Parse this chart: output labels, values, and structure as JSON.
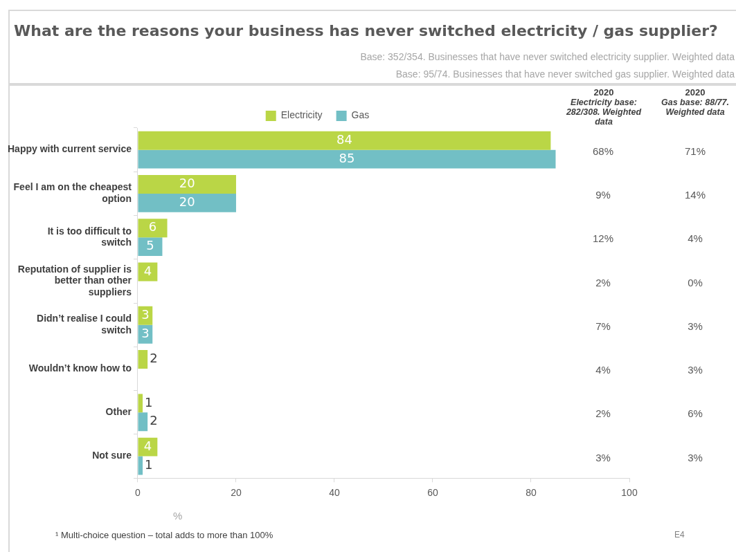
{
  "chart_data": {
    "type": "bar",
    "orientation": "horizontal",
    "title": "What are the reasons your business has never switched electricity / gas supplier?",
    "subtitle": "Base: 352/354. Businesses that have never switched electricity supplier. Weighted data",
    "xlabel": "%",
    "categories": [
      "Happy with current service",
      "Feel I am on the cheapest option",
      "It is too difficult to switch",
      "Reputation of supplier is better than other suppliers",
      "Didn’t realise I could switch",
      "Wouldn’t know how to",
      "Other",
      "Not sure"
    ],
    "series": [
      {
        "name": "Electricity",
        "color": "#bad646",
        "values": [
          84,
          20,
          6,
          4,
          3,
          2,
          1,
          4
        ]
      },
      {
        "name": "Gas",
        "color": "#72bfc5",
        "values": [
          85,
          20,
          5,
          null,
          3,
          null,
          2,
          1
        ]
      }
    ],
    "xlim": [
      0,
      100
    ],
    "xticks": [
      0,
      20,
      40,
      60,
      80,
      100
    ],
    "grid": false,
    "legend": "top",
    "data_labels": true,
    "annotations": [
      "Base: 95/74. Businesses that have never switched gas supplier. Weighted data",
      "2020 Electricity base: 282/308. Weighted data",
      "2020 Gas base: 88/77. Weighted data",
      "68%",
      "71%",
      "9%",
      "14%",
      "12%",
      "4%",
      "2%",
      "0%",
      "7%",
      "3%",
      "4%",
      "3%",
      "2%",
      "6%",
      "3%",
      "3%",
      "¹ Multi-choice question – total adds to more than 100%",
      "E4"
    ]
  }
}
